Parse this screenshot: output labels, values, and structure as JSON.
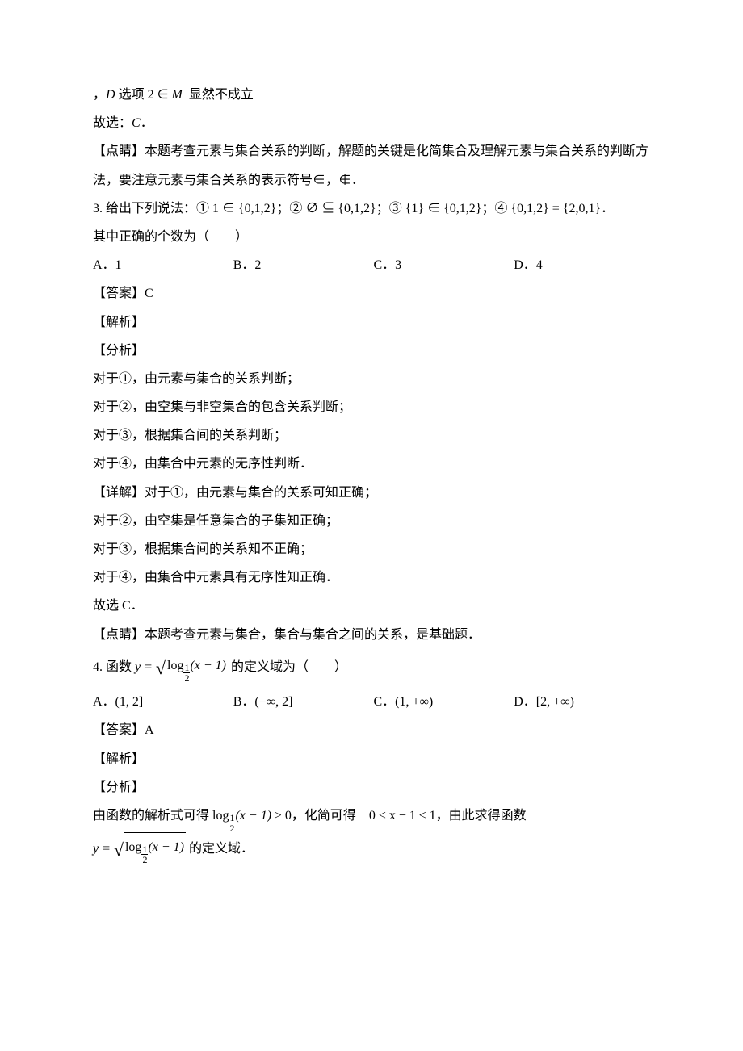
{
  "body": {
    "text_color": "#000000",
    "background_color": "#ffffff",
    "font_family_cjk": "SimSun",
    "font_family_math": "Times New Roman",
    "base_fontsize_pt": 12,
    "line_height": 2.2
  },
  "lines": {
    "l0": "，D 选项 2 ∈ M   显然不成立",
    "l1": "故选：C．",
    "l2": "【点睛】本题考查元素与集合关系的判断，解题的关键是化简集合及理解元素与集合关系的判断方法，要注意元素与集合关系的表示符号∈，∉．",
    "q3": "3. 给出下列说法：① 1 ∈ {0,1,2}；② ∅ ⊆ {0,1,2}；③ {1} ∈ {0,1,2}；④ {0,1,2} = {2,0,1}．",
    "q3b": "其中正确的个数为（　　）",
    "q3_opts": {
      "A": "A．1",
      "B": "B．2",
      "C": "C．3",
      "D": "D．4"
    },
    "q3_ans": "【答案】C",
    "jiexi": "【解析】",
    "fenxi": "【分析】",
    "q3_a1": "对于①，由元素与集合的关系判断；",
    "q3_a2": "对于②，由空集与非空集合的包含关系判断；",
    "q3_a3": "对于③，根据集合间的关系判断；",
    "q3_a4": "对于④，由集合中元素的无序性判断．",
    "q3_d0": "【详解】对于①，由元素与集合的关系可知正确；",
    "q3_d1": "对于②，由空集是任意集合的子集知正确；",
    "q3_d2": "对于③，根据集合间的关系知不正确；",
    "q3_d3": "对于④，由集合中元素具有无序性知正确．",
    "q3_d4": "故选 C．",
    "q3_ds": "【点睛】本题考查元素与集合，集合与集合之间的关系，是基础题．",
    "q4_pre": "4. 函数 ",
    "q4_post": " 的定义域为（　　）",
    "q4_opts": {
      "A": "A．(1, 2]",
      "B": "B．(−∞, 2]",
      "C": "C．(1, +∞)",
      "D": "D．[2, +∞)"
    },
    "q4_ans": "【答案】A",
    "q4_f_pre": "由函数的解析式可得 ",
    "q4_f_mid": "，化简可得　0 < x − 1 ≤ 1，由此求得函数",
    "q4_f_last": " 的定义域．",
    "math": {
      "y_eq": "y =",
      "log": "log",
      "half_num": "1",
      "half_den": "2",
      "xm1": "(x − 1)",
      "ge0": " ≥ 0"
    }
  }
}
